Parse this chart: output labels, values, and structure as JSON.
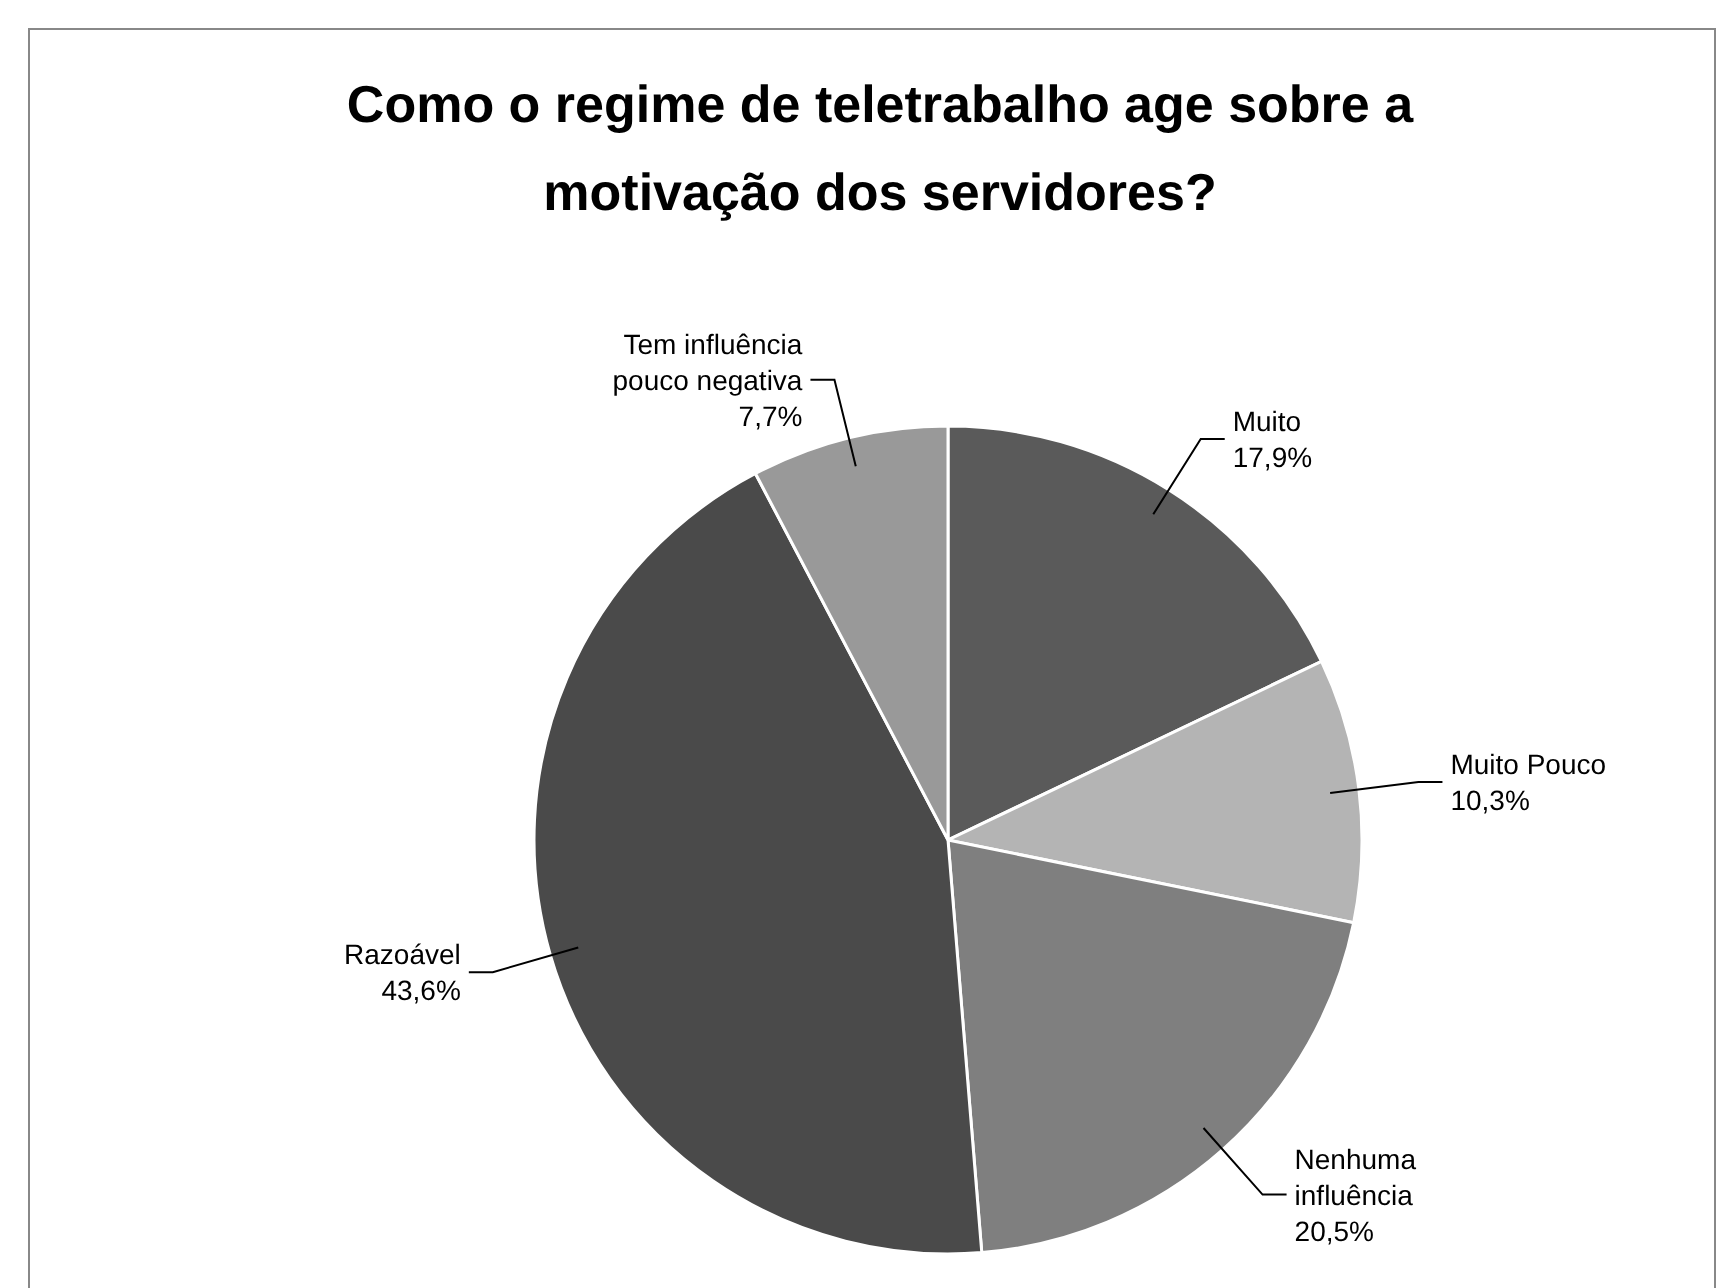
{
  "chart_data": {
    "type": "pie",
    "title": "Como o regime de teletrabalho age sobre a motivação dos servidores?",
    "categories": [
      "Muito",
      "Muito Pouco",
      "Nenhuma influência",
      "Razoável",
      "Tem influência pouco negativa"
    ],
    "values": [
      17.9,
      10.3,
      20.5,
      43.6,
      7.7
    ],
    "value_labels": [
      "17,9%",
      "10,3%",
      "20,5%",
      "43,6%",
      "7,7%"
    ],
    "colors": [
      "#5a5a5a",
      "#b4b4b4",
      "#7f7f7f",
      "#4a4a4a",
      "#999999"
    ],
    "legend": false
  }
}
